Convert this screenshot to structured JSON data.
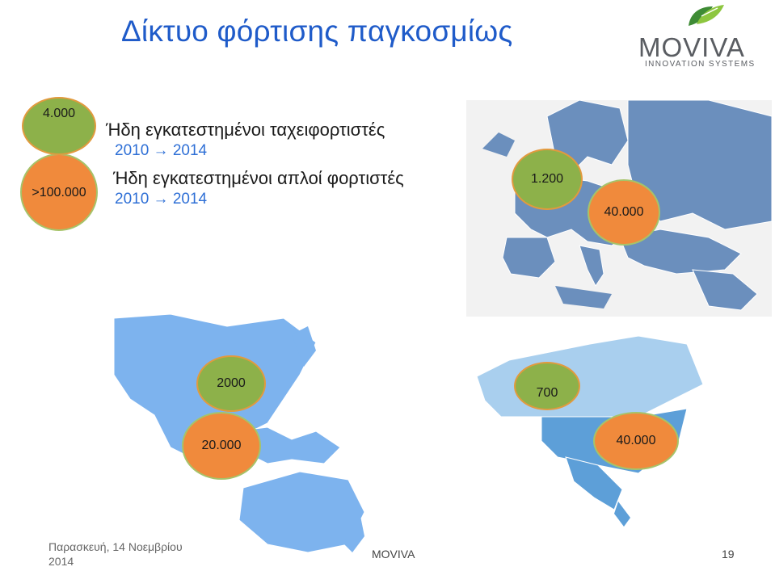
{
  "slide": {
    "title": "Δίκτυο φόρτισης παγκοσμίως"
  },
  "logo": {
    "word": "MOVIVA",
    "subtitle": "INNOVATION SYSTEMS",
    "colors": {
      "green_dark": "#3e8b35",
      "green_light": "#8dc63f",
      "grey": "#5a5d62"
    }
  },
  "legend": {
    "fast": {
      "count": "4.000",
      "label": "Ήδη εγκατεστημένοι ταχειφορτιστές",
      "range": "2010 → 2014"
    },
    "normal": {
      "count": ">100.000",
      "label": "Ήδη εγκατεστημένοι απλοί φορτιστές",
      "range": "2010 → 2014"
    }
  },
  "regions": {
    "europe": {
      "fast": "1.200",
      "normal": "40.000"
    },
    "asia_pacific": {
      "fast": "2000",
      "normal": "20.000"
    },
    "north_america": {
      "fast": "700",
      "normal": "40.000"
    }
  },
  "footer": {
    "date_line1": "Παρασκευή, 14 Νοεμβρίου",
    "date_line2": "2014",
    "brand": "MOVIVA",
    "page": "19"
  },
  "colors": {
    "title": "#1f5bc9",
    "range": "#2e6fd6",
    "fast_circle": "#8db14a",
    "normal_circle": "#f08a3c",
    "europe_land": "#6b8fbd",
    "asia_land": "#7db3ee",
    "america_land": "#7fb5e6"
  }
}
